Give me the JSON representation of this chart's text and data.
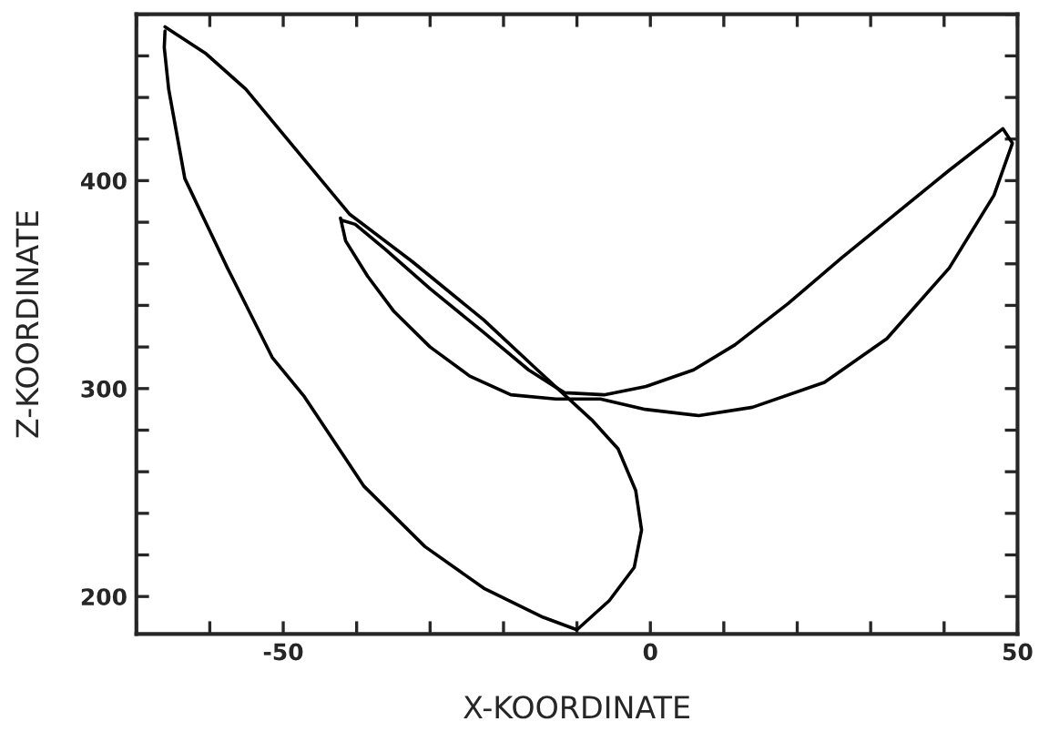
{
  "chart_data": {
    "type": "line",
    "xlabel": "X-KOORDINATE",
    "ylabel": "Z-KOORDINATE",
    "xlim": [
      -70,
      50
    ],
    "ylim": [
      182,
      480
    ],
    "xticks": [
      {
        "value": -70,
        "label": null
      },
      {
        "value": -60,
        "label": null
      },
      -50,
      {
        "value": -40,
        "label": null
      },
      {
        "value": -30,
        "label": null
      },
      {
        "value": -20,
        "label": null
      },
      {
        "value": -10,
        "label": null
      },
      0,
      {
        "value": 10,
        "label": null
      },
      {
        "value": 20,
        "label": null
      },
      {
        "value": 30,
        "label": null
      },
      {
        "value": 40,
        "label": null
      },
      50
    ],
    "yticks": [
      200,
      {
        "value": 220,
        "label": null
      },
      {
        "value": 240,
        "label": null
      },
      {
        "value": 260,
        "label": null
      },
      {
        "value": 280,
        "label": null
      },
      300,
      {
        "value": 320,
        "label": null
      },
      {
        "value": 340,
        "label": null
      },
      {
        "value": 360,
        "label": null
      },
      {
        "value": 380,
        "label": null
      },
      400,
      {
        "value": 420,
        "label": null
      },
      {
        "value": 440,
        "label": null
      },
      {
        "value": 460,
        "label": null
      },
      {
        "value": 480,
        "label": null
      }
    ],
    "grid": false,
    "legend": false,
    "marker": "none",
    "line_style": "solid",
    "series": [
      {
        "color": "#000000",
        "x": [
          -66.1,
          -60.5,
          -55.1,
          -47.1,
          -41.0,
          -32.4,
          -22.7,
          -15.4,
          -8.0,
          -4.4,
          -2.0,
          -1.2,
          -2.2,
          -5.6,
          -10.0,
          -14.6,
          -22.7,
          -30.7,
          -39.0,
          -47.1,
          -51.5,
          -57.6,
          -63.4,
          -65.6,
          -66.2,
          -66.1
        ],
        "values": [
          474,
          461,
          444,
          410,
          384,
          361,
          333,
          309,
          285,
          271,
          251,
          232,
          214,
          198,
          184,
          190,
          204,
          224,
          253,
          296,
          315,
          358,
          401,
          444,
          464,
          472
        ]
      },
      {
        "color": "#000000",
        "x": [
          -42.2,
          -41.5,
          -38.5,
          -34.9,
          -30.0,
          -24.6,
          -19.0,
          -12.9,
          -6.8,
          -0.7,
          6.6,
          13.9,
          23.7,
          32.2,
          40.7,
          46.8,
          49.3,
          48.0,
          40.7,
          33.4,
          26.1,
          18.8,
          11.5,
          5.9,
          -0.6,
          -6.3,
          -11.7,
          -16.6,
          -22.7,
          -30.0,
          -36.1,
          -40.2,
          -42.1
        ],
        "values": [
          382,
          371,
          354,
          337,
          320,
          306,
          297,
          295,
          295,
          290,
          287,
          291,
          303,
          324,
          358,
          393,
          418,
          425,
          405,
          384,
          363,
          341,
          321,
          309,
          301,
          297,
          298,
          309,
          327,
          348,
          367,
          379,
          381
        ]
      }
    ]
  }
}
